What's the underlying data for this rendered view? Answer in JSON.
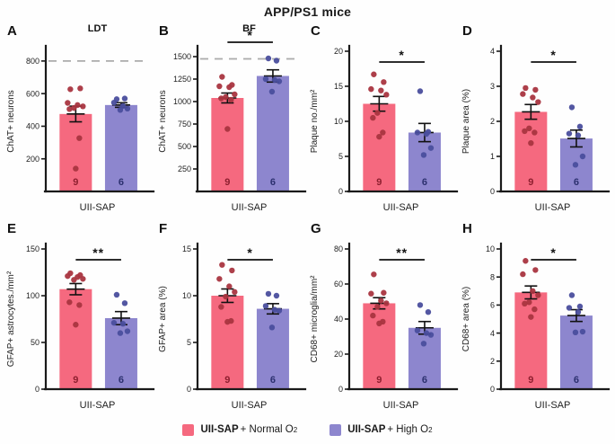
{
  "title": "APP/PS1 mice",
  "colors": {
    "bar_normal": "#F5697F",
    "bar_high": "#8D86CE",
    "dot_normal": "#A93540",
    "dot_high": "#4A4E9D",
    "n_normal": "#8E1F2F",
    "n_high": "#2C306F",
    "dashed": "#ABABAB",
    "axis": "#1a1a1a"
  },
  "legend": {
    "items": [
      {
        "bold": "UII-SAP",
        "text": " + Normal O",
        "sub": "2",
        "color_key": "bar_normal"
      },
      {
        "bold": "UII-SAP",
        "text": " + High O",
        "sub": "2",
        "color_key": "bar_high"
      }
    ]
  },
  "chart_data": [
    {
      "type": "bar",
      "panel": "A",
      "subtitle": "LDT",
      "ylabel": "ChAT+ neurons",
      "xlabel": "UII-SAP",
      "ylim": [
        0,
        860
      ],
      "yticks": [
        200,
        400,
        600,
        800
      ],
      "dashed_line": 800,
      "sig": null,
      "groups": [
        {
          "name": "UII-SAP + Normal O2",
          "n": 9,
          "mean": 475,
          "sem": 48,
          "points": [
            627,
            632,
            543,
            530,
            522,
            512,
            505,
            327,
            140
          ]
        },
        {
          "name": "UII-SAP + High O2",
          "n": 6,
          "mean": 530,
          "sem": 14,
          "points": [
            566,
            570,
            545,
            524,
            508,
            500
          ]
        }
      ]
    },
    {
      "type": "bar",
      "panel": "B",
      "subtitle": "BF",
      "ylabel": "ChAT+ neurons",
      "xlabel": "UII-SAP",
      "ylim": [
        0,
        1560
      ],
      "yticks": [
        250,
        500,
        750,
        1000,
        1250,
        1500
      ],
      "dashed_line": 1475,
      "sig": "*",
      "groups": [
        {
          "name": "UII-SAP + Normal O2",
          "n": 9,
          "mean": 1040,
          "sem": 55,
          "points": [
            1275,
            1185,
            1170,
            1160,
            1080,
            1050,
            1035,
            1020,
            695
          ]
        },
        {
          "name": "UII-SAP + High O2",
          "n": 6,
          "mean": 1285,
          "sem": 68,
          "points": [
            1480,
            1455,
            1250,
            1240,
            1225,
            1110
          ]
        }
      ]
    },
    {
      "type": "bar",
      "panel": "C",
      "subtitle": null,
      "ylabel": "Plaque no./mm²",
      "xlabel": "UII-SAP",
      "ylim": [
        0,
        20
      ],
      "yticks": [
        0,
        5,
        10,
        15,
        20
      ],
      "dashed_line": null,
      "sig": "*",
      "groups": [
        {
          "name": "UII-SAP + Normal O2",
          "n": 9,
          "mean": 12.5,
          "sem": 1.05,
          "points": [
            16.7,
            15.6,
            14.6,
            14.4,
            13.8,
            11.2,
            10.5,
            8.4,
            7.8
          ]
        },
        {
          "name": "UII-SAP + High O2",
          "n": 6,
          "mean": 8.4,
          "sem": 1.3,
          "points": [
            14.3,
            8.5,
            8.4,
            8.2,
            6.2,
            5.2
          ]
        }
      ]
    },
    {
      "type": "bar",
      "panel": "D",
      "subtitle": null,
      "ylabel": "Plaque area (%)",
      "xlabel": "UII-SAP",
      "ylim": [
        0,
        4
      ],
      "yticks": [
        0,
        1,
        2,
        3,
        4
      ],
      "dashed_line": null,
      "sig": "*",
      "groups": [
        {
          "name": "UII-SAP + Normal O2",
          "n": 9,
          "mean": 2.27,
          "sem": 0.21,
          "points": [
            2.95,
            2.9,
            2.78,
            2.68,
            2.55,
            1.8,
            1.72,
            1.68,
            1.38
          ]
        },
        {
          "name": "UII-SAP + High O2",
          "n": 6,
          "mean": 1.51,
          "sem": 0.24,
          "points": [
            2.4,
            1.85,
            1.65,
            1.6,
            1.0,
            0.76
          ]
        }
      ]
    },
    {
      "type": "bar",
      "panel": "E",
      "subtitle": null,
      "ylabel": "GFAP+ astrocytes./mm²",
      "xlabel": "UII-SAP",
      "ylim": [
        0,
        150
      ],
      "yticks": [
        0,
        50,
        100,
        150
      ],
      "dashed_line": null,
      "sig": "**",
      "groups": [
        {
          "name": "UII-SAP + Normal O2",
          "n": 9,
          "mean": 107,
          "sem": 6,
          "points": [
            124,
            122,
            121,
            120,
            118,
            117,
            93,
            90,
            69
          ]
        },
        {
          "name": "UII-SAP + High O2",
          "n": 6,
          "mean": 76,
          "sem": 7,
          "points": [
            101,
            92,
            71,
            70,
            62,
            60
          ]
        }
      ]
    },
    {
      "type": "bar",
      "panel": "F",
      "subtitle": null,
      "ylabel": "GFAP+ area (%)",
      "xlabel": "UII-SAP",
      "ylim": [
        0,
        15
      ],
      "yticks": [
        0,
        5,
        10,
        15
      ],
      "dashed_line": null,
      "sig": "*",
      "groups": [
        {
          "name": "UII-SAP + Normal O2",
          "n": 9,
          "mean": 10.0,
          "sem": 0.72,
          "points": [
            13.3,
            12.7,
            11.8,
            11.0,
            10.4,
            9.9,
            8.8,
            7.3,
            7.2
          ]
        },
        {
          "name": "UII-SAP + High O2",
          "n": 6,
          "mean": 8.6,
          "sem": 0.55,
          "points": [
            10.2,
            10.0,
            8.9,
            8.5,
            8.4,
            6.6
          ]
        }
      ]
    },
    {
      "type": "bar",
      "panel": "G",
      "subtitle": null,
      "ylabel": "CD68+ microglia/mm²",
      "xlabel": "UII-SAP",
      "ylim": [
        0,
        80
      ],
      "yticks": [
        0,
        20,
        40,
        60,
        80
      ],
      "dashed_line": null,
      "sig": "**",
      "groups": [
        {
          "name": "UII-SAP + Normal O2",
          "n": 9,
          "mean": 49,
          "sem": 3.2,
          "points": [
            65.5,
            55,
            54.5,
            50.5,
            49,
            47,
            42,
            38.5,
            37.5
          ]
        },
        {
          "name": "UII-SAP + High O2",
          "n": 6,
          "mean": 35,
          "sem": 3.6,
          "points": [
            48,
            44,
            33.5,
            32,
            31,
            26
          ]
        }
      ]
    },
    {
      "type": "bar",
      "panel": "H",
      "subtitle": null,
      "ylabel": "CD68+ area (%)",
      "xlabel": "UII-SAP",
      "ylim": [
        0,
        10
      ],
      "yticks": [
        0,
        2,
        4,
        6,
        8,
        10
      ],
      "dashed_line": null,
      "sig": "*",
      "groups": [
        {
          "name": "UII-SAP + Normal O2",
          "n": 9,
          "mean": 6.9,
          "sem": 0.46,
          "points": [
            9.15,
            8.5,
            8.2,
            7.0,
            6.7,
            6.2,
            6.1,
            5.7,
            5.15
          ]
        },
        {
          "name": "UII-SAP + High O2",
          "n": 6,
          "mean": 5.25,
          "sem": 0.42,
          "points": [
            6.7,
            5.9,
            5.8,
            5.5,
            4.1,
            4.05
          ]
        }
      ]
    }
  ]
}
